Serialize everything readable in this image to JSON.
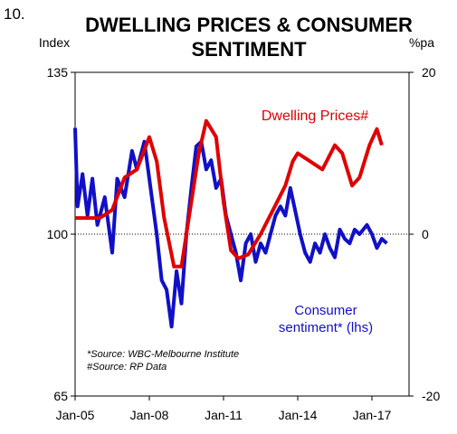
{
  "chart_data": {
    "type": "line",
    "number": "10.",
    "title": "DWELLING PRICES & CONSUMER SENTIMENT",
    "ylabel": "Index",
    "y2label": "%pa",
    "sources": [
      "*Source: WBC-Melbourne Institute",
      "#Source: RP Data"
    ],
    "xlim": [
      2005,
      2018.5
    ],
    "xticks": [
      {
        "value": 2005,
        "label": "Jan-05"
      },
      {
        "value": 2008,
        "label": "Jan-08"
      },
      {
        "value": 2011,
        "label": "Jan-11"
      },
      {
        "value": 2014,
        "label": "Jan-14"
      },
      {
        "value": 2017,
        "label": "Jan-17"
      }
    ],
    "ylim": [
      65,
      135
    ],
    "yticks": [
      65,
      100,
      135
    ],
    "y2lim": [
      -20,
      20
    ],
    "y2ticks": [
      -20,
      0,
      20
    ],
    "reference_line": 100,
    "series": [
      {
        "name": "Consumer sentiment* (lhs)",
        "color": "#1010c8",
        "axis": "y",
        "x": [
          2005.0,
          2005.1,
          2005.3,
          2005.5,
          2005.7,
          2005.9,
          2006.2,
          2006.5,
          2006.7,
          2007.0,
          2007.3,
          2007.5,
          2007.8,
          2008.0,
          2008.3,
          2008.5,
          2008.7,
          2008.9,
          2009.1,
          2009.3,
          2009.5,
          2009.7,
          2009.9,
          2010.1,
          2010.3,
          2010.5,
          2010.7,
          2010.9,
          2011.1,
          2011.3,
          2011.5,
          2011.7,
          2011.9,
          2012.1,
          2012.3,
          2012.5,
          2012.7,
          2012.9,
          2013.1,
          2013.3,
          2013.5,
          2013.7,
          2013.9,
          2014.1,
          2014.3,
          2014.5,
          2014.7,
          2014.9,
          2015.1,
          2015.3,
          2015.5,
          2015.7,
          2015.9,
          2016.1,
          2016.3,
          2016.5,
          2016.8,
          2017.0,
          2017.2,
          2017.4,
          2017.6
        ],
        "values": [
          123,
          106,
          113,
          104,
          112,
          102,
          108,
          96,
          112,
          108,
          118,
          114,
          120,
          112,
          100,
          90,
          88,
          80,
          92,
          85,
          100,
          110,
          119,
          120,
          114,
          116,
          110,
          112,
          104,
          100,
          96,
          90,
          98,
          100,
          94,
          98,
          96,
          100,
          104,
          106,
          104,
          110,
          105,
          100,
          96,
          94,
          98,
          96,
          100,
          97,
          95,
          101,
          99,
          98,
          101,
          100,
          102,
          100,
          97,
          99,
          98
        ]
      },
      {
        "name": "Dwelling Prices#",
        "color": "#e00000",
        "axis": "y2",
        "x": [
          2005.0,
          2006.0,
          2006.5,
          2007.0,
          2007.5,
          2008.0,
          2008.3,
          2008.6,
          2009.0,
          2009.3,
          2009.6,
          2010.0,
          2010.3,
          2010.7,
          2011.0,
          2011.3,
          2011.6,
          2012.0,
          2012.5,
          2013.0,
          2013.5,
          2013.8,
          2014.0,
          2014.5,
          2015.0,
          2015.5,
          2015.8,
          2016.2,
          2016.5,
          2016.9,
          2017.2,
          2017.4
        ],
        "values": [
          2,
          2,
          3,
          7,
          8,
          12,
          9,
          2,
          -4,
          -4,
          2,
          10,
          14,
          12,
          4,
          -2,
          -3,
          -2.5,
          0,
          3,
          6,
          9,
          10,
          9,
          8,
          11,
          10,
          6,
          7,
          11,
          13,
          11
        ]
      }
    ]
  }
}
